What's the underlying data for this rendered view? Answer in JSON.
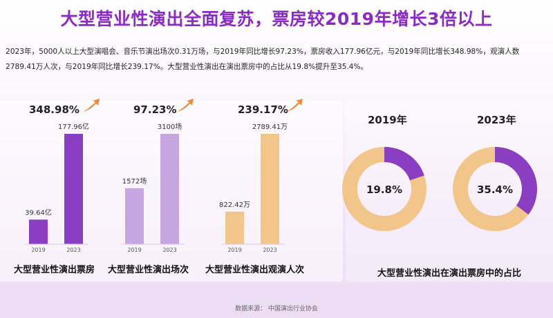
{
  "title": "大型营业性演出全面复苏，票房较2019年增长3倍以上",
  "description": "2023年，5000人以上大型演唱会、音乐节演出场次0.31万场，与2019年同比增长97.23%，票房收入177.96亿元，与2019年同比增长348.98%，观演人数2789.41万人次，与2019年同比增长239.17%。大型营业性演出在演出票房中的占比从19.8%提升至35.4%。",
  "colors": {
    "revenue_bar": "#8a3ec2",
    "shows_bar": "#c6a5e0",
    "audience_bar": "#f2c68a",
    "donut_share": "#8a3ec2",
    "donut_rest": "#f2c68a",
    "arrow": "#f08a3a"
  },
  "source": "数据来源：   中国演出行业协会",
  "chart_data": [
    {
      "type": "bar",
      "title": "大型营业性演出票房",
      "growth": "348.98%",
      "categories": [
        "2019",
        "2023"
      ],
      "values": [
        39.64,
        177.96
      ],
      "labels": [
        "39.64亿",
        "177.96亿"
      ],
      "color": "#8a3ec2"
    },
    {
      "type": "bar",
      "title": "大型营业性演出场次",
      "growth": "97.23%",
      "categories": [
        "2019",
        "2023"
      ],
      "values": [
        1572,
        3100
      ],
      "labels": [
        "1572场",
        "3100场"
      ],
      "color": "#c6a5e0"
    },
    {
      "type": "bar",
      "title": "大型营业性演出观演人次",
      "growth": "239.17%",
      "categories": [
        "2019",
        "2023"
      ],
      "values": [
        822.42,
        2789.41
      ],
      "labels": [
        "822.42万",
        "2789.41万"
      ],
      "color": "#f2c68a"
    },
    {
      "type": "pie",
      "title": "大型营业性演出在演出票房中的占比",
      "donuts": [
        {
          "year": "2019年",
          "value": 19.8,
          "label": "19.8%"
        },
        {
          "year": "2023年",
          "value": 35.4,
          "label": "35.4%"
        }
      ]
    }
  ]
}
